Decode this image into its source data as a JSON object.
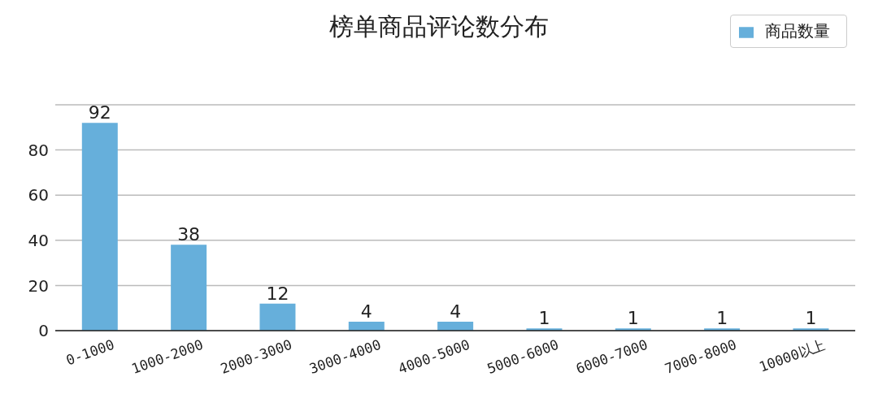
{
  "chart_data": {
    "type": "bar",
    "title": "榜单商品评论数分布",
    "categories": [
      "0-1000",
      "1000-2000",
      "2000-3000",
      "3000-4000",
      "4000-5000",
      "5000-6000",
      "6000-7000",
      "7000-8000",
      "10000以上"
    ],
    "series": [
      {
        "name": "商品数量",
        "color": "#66afdb",
        "values": [
          92,
          38,
          12,
          4,
          4,
          1,
          1,
          1,
          1
        ]
      }
    ],
    "ylim": [
      0,
      100
    ],
    "yticks": [
      0,
      20,
      40,
      60,
      80
    ],
    "grid": "y",
    "legend": "top right",
    "data_labels": true
  }
}
